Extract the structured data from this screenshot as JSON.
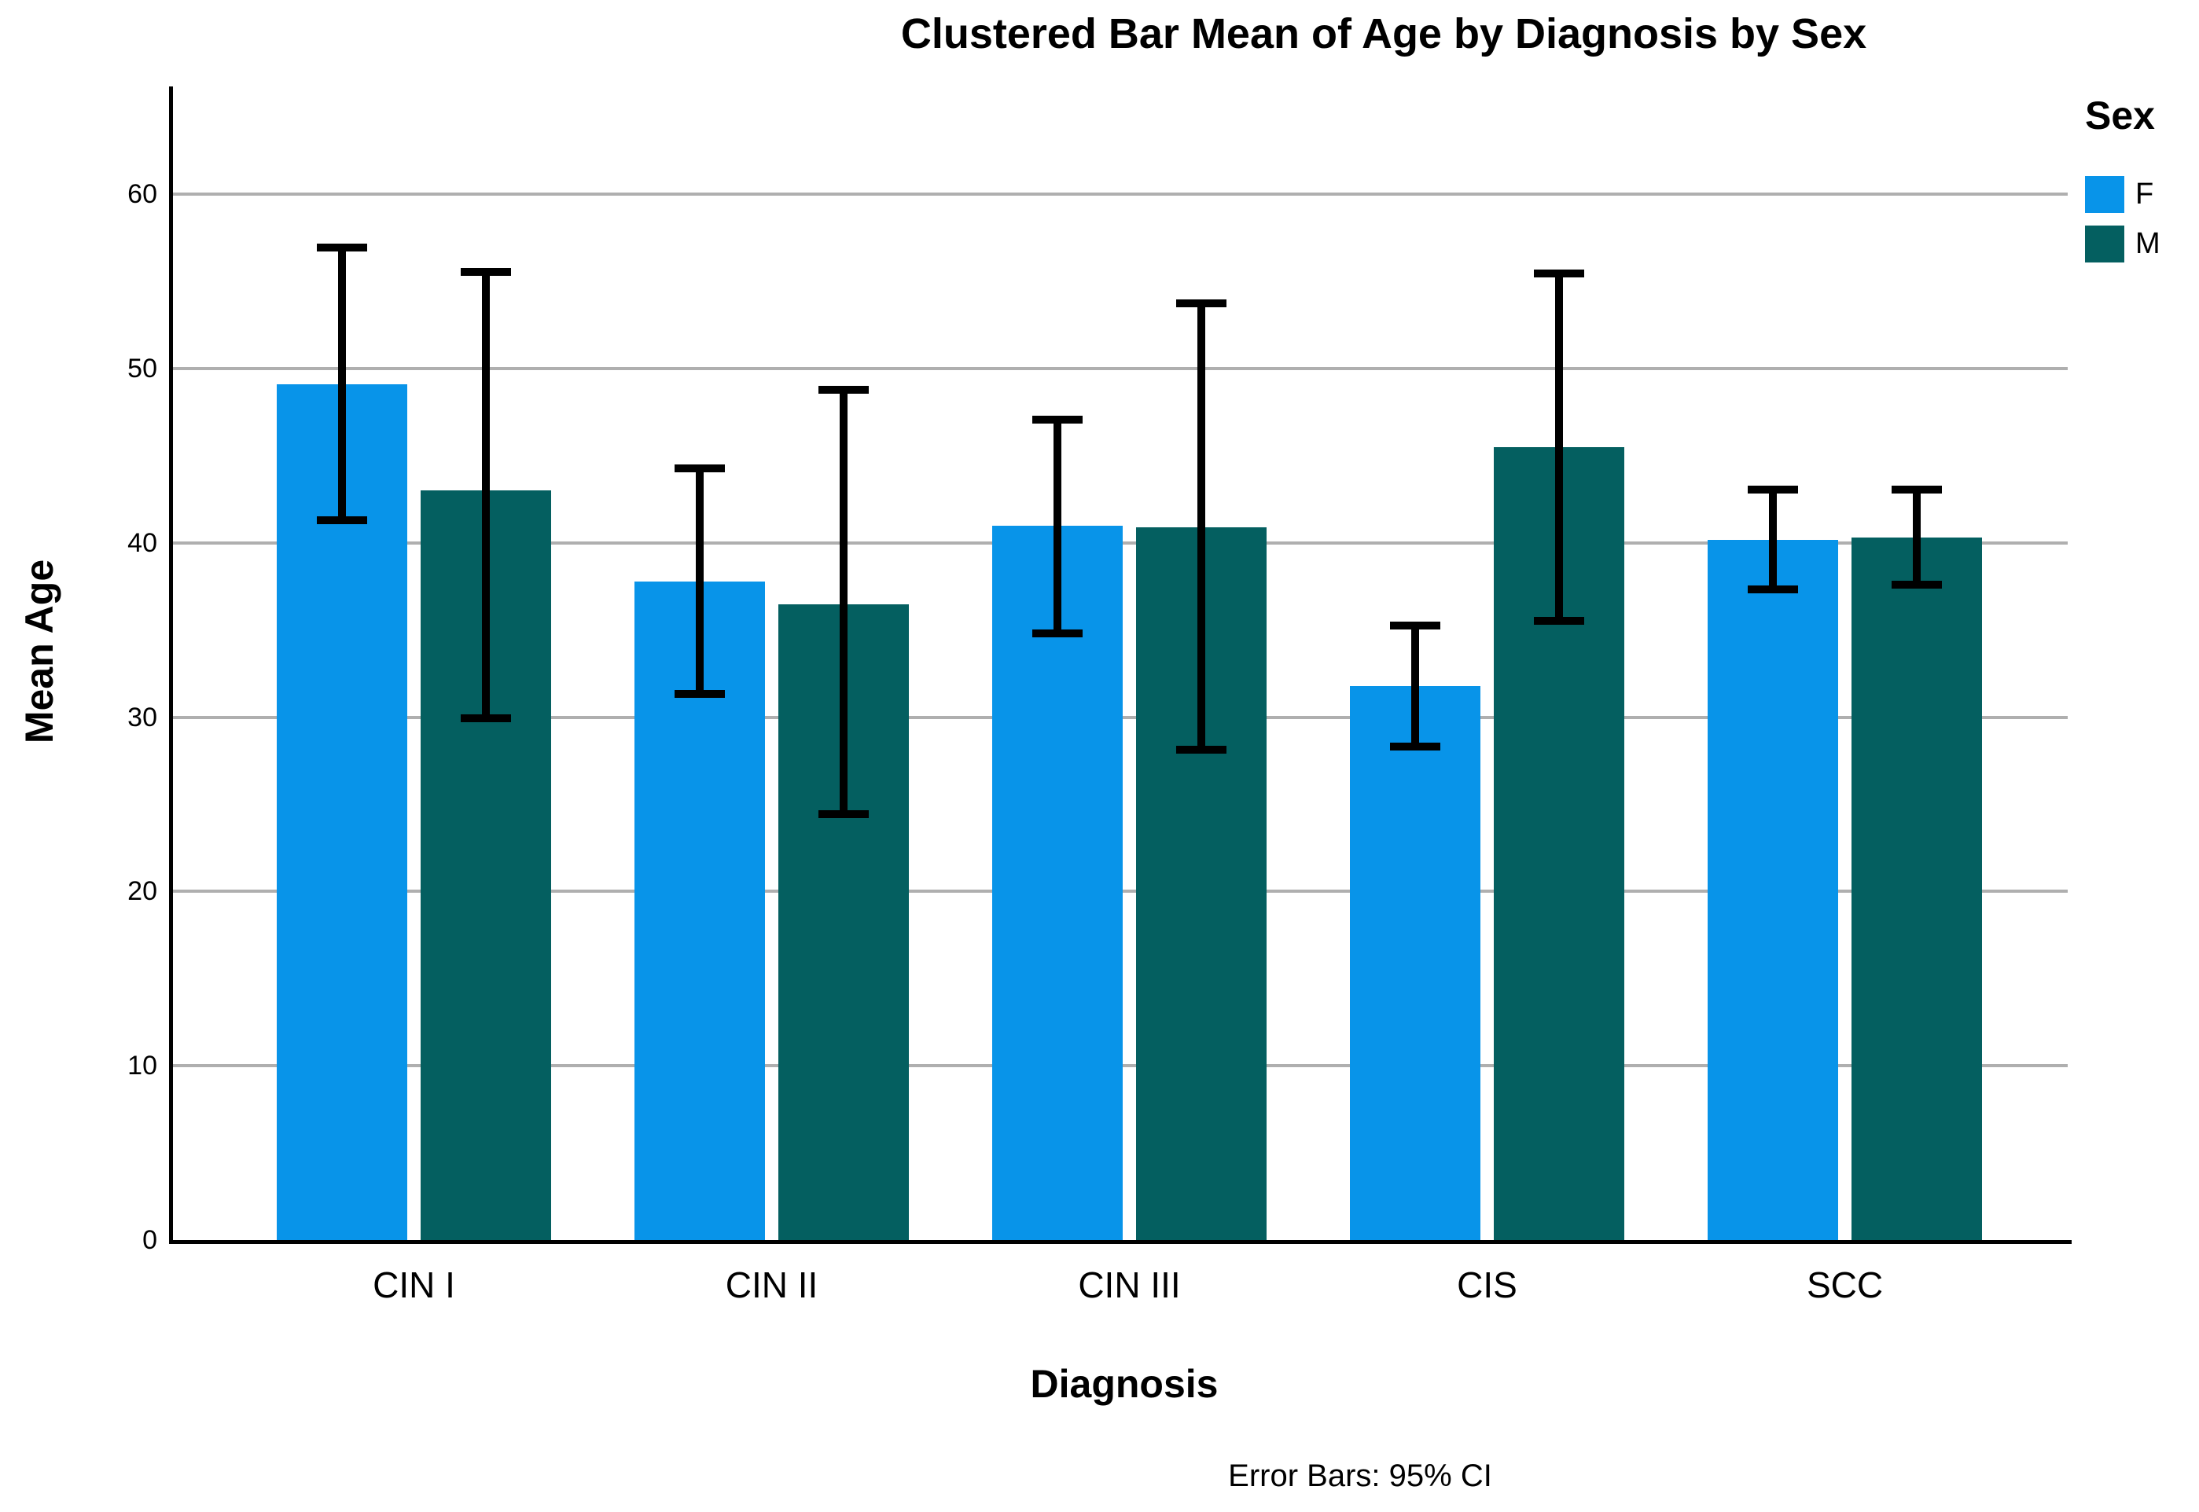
{
  "title": "Clustered Bar Mean of Age by Diagnosis by Sex",
  "y_axis": {
    "label": "Mean Age",
    "ticks": [
      0,
      10,
      20,
      30,
      40,
      50,
      60
    ]
  },
  "x_axis": {
    "label": "Diagnosis"
  },
  "legend": {
    "title": "Sex",
    "entries": [
      {
        "label": "F",
        "color": "#0894E9"
      },
      {
        "label": "M",
        "color": "#045F60"
      }
    ]
  },
  "footnote": "Error Bars: 95% CI",
  "colors": {
    "background": "#FFFFFF",
    "axis": "#000000",
    "gridline": "#AFAFAF",
    "bar_f": "#0894E9",
    "bar_m": "#045F60",
    "error_bar": "#000000"
  },
  "chart_data": {
    "type": "bar",
    "title": "Clustered Bar Mean of Age by Diagnosis by Sex",
    "xlabel": "Diagnosis",
    "ylabel": "Mean Age",
    "categories": [
      "CIN I",
      "CIN II",
      "CIN III",
      "CIS",
      "SCC"
    ],
    "series": [
      {
        "name": "F",
        "color": "#0894E9",
        "values": [
          49.1,
          37.8,
          41.0,
          31.8,
          40.2
        ],
        "ci_low": [
          41.1,
          31.1,
          34.6,
          28.1,
          37.1
        ],
        "ci_high": [
          57.2,
          44.5,
          47.3,
          35.5,
          43.3
        ]
      },
      {
        "name": "M",
        "color": "#045F60",
        "values": [
          43.0,
          36.5,
          40.9,
          45.5,
          40.3
        ],
        "ci_low": [
          29.7,
          24.2,
          27.9,
          35.3,
          37.4
        ],
        "ci_high": [
          55.8,
          49.0,
          54.0,
          55.7,
          43.3
        ]
      }
    ],
    "error_bars": "95% CI",
    "ylim": [
      0,
      60
    ],
    "grid": true,
    "legend_position": "right"
  }
}
